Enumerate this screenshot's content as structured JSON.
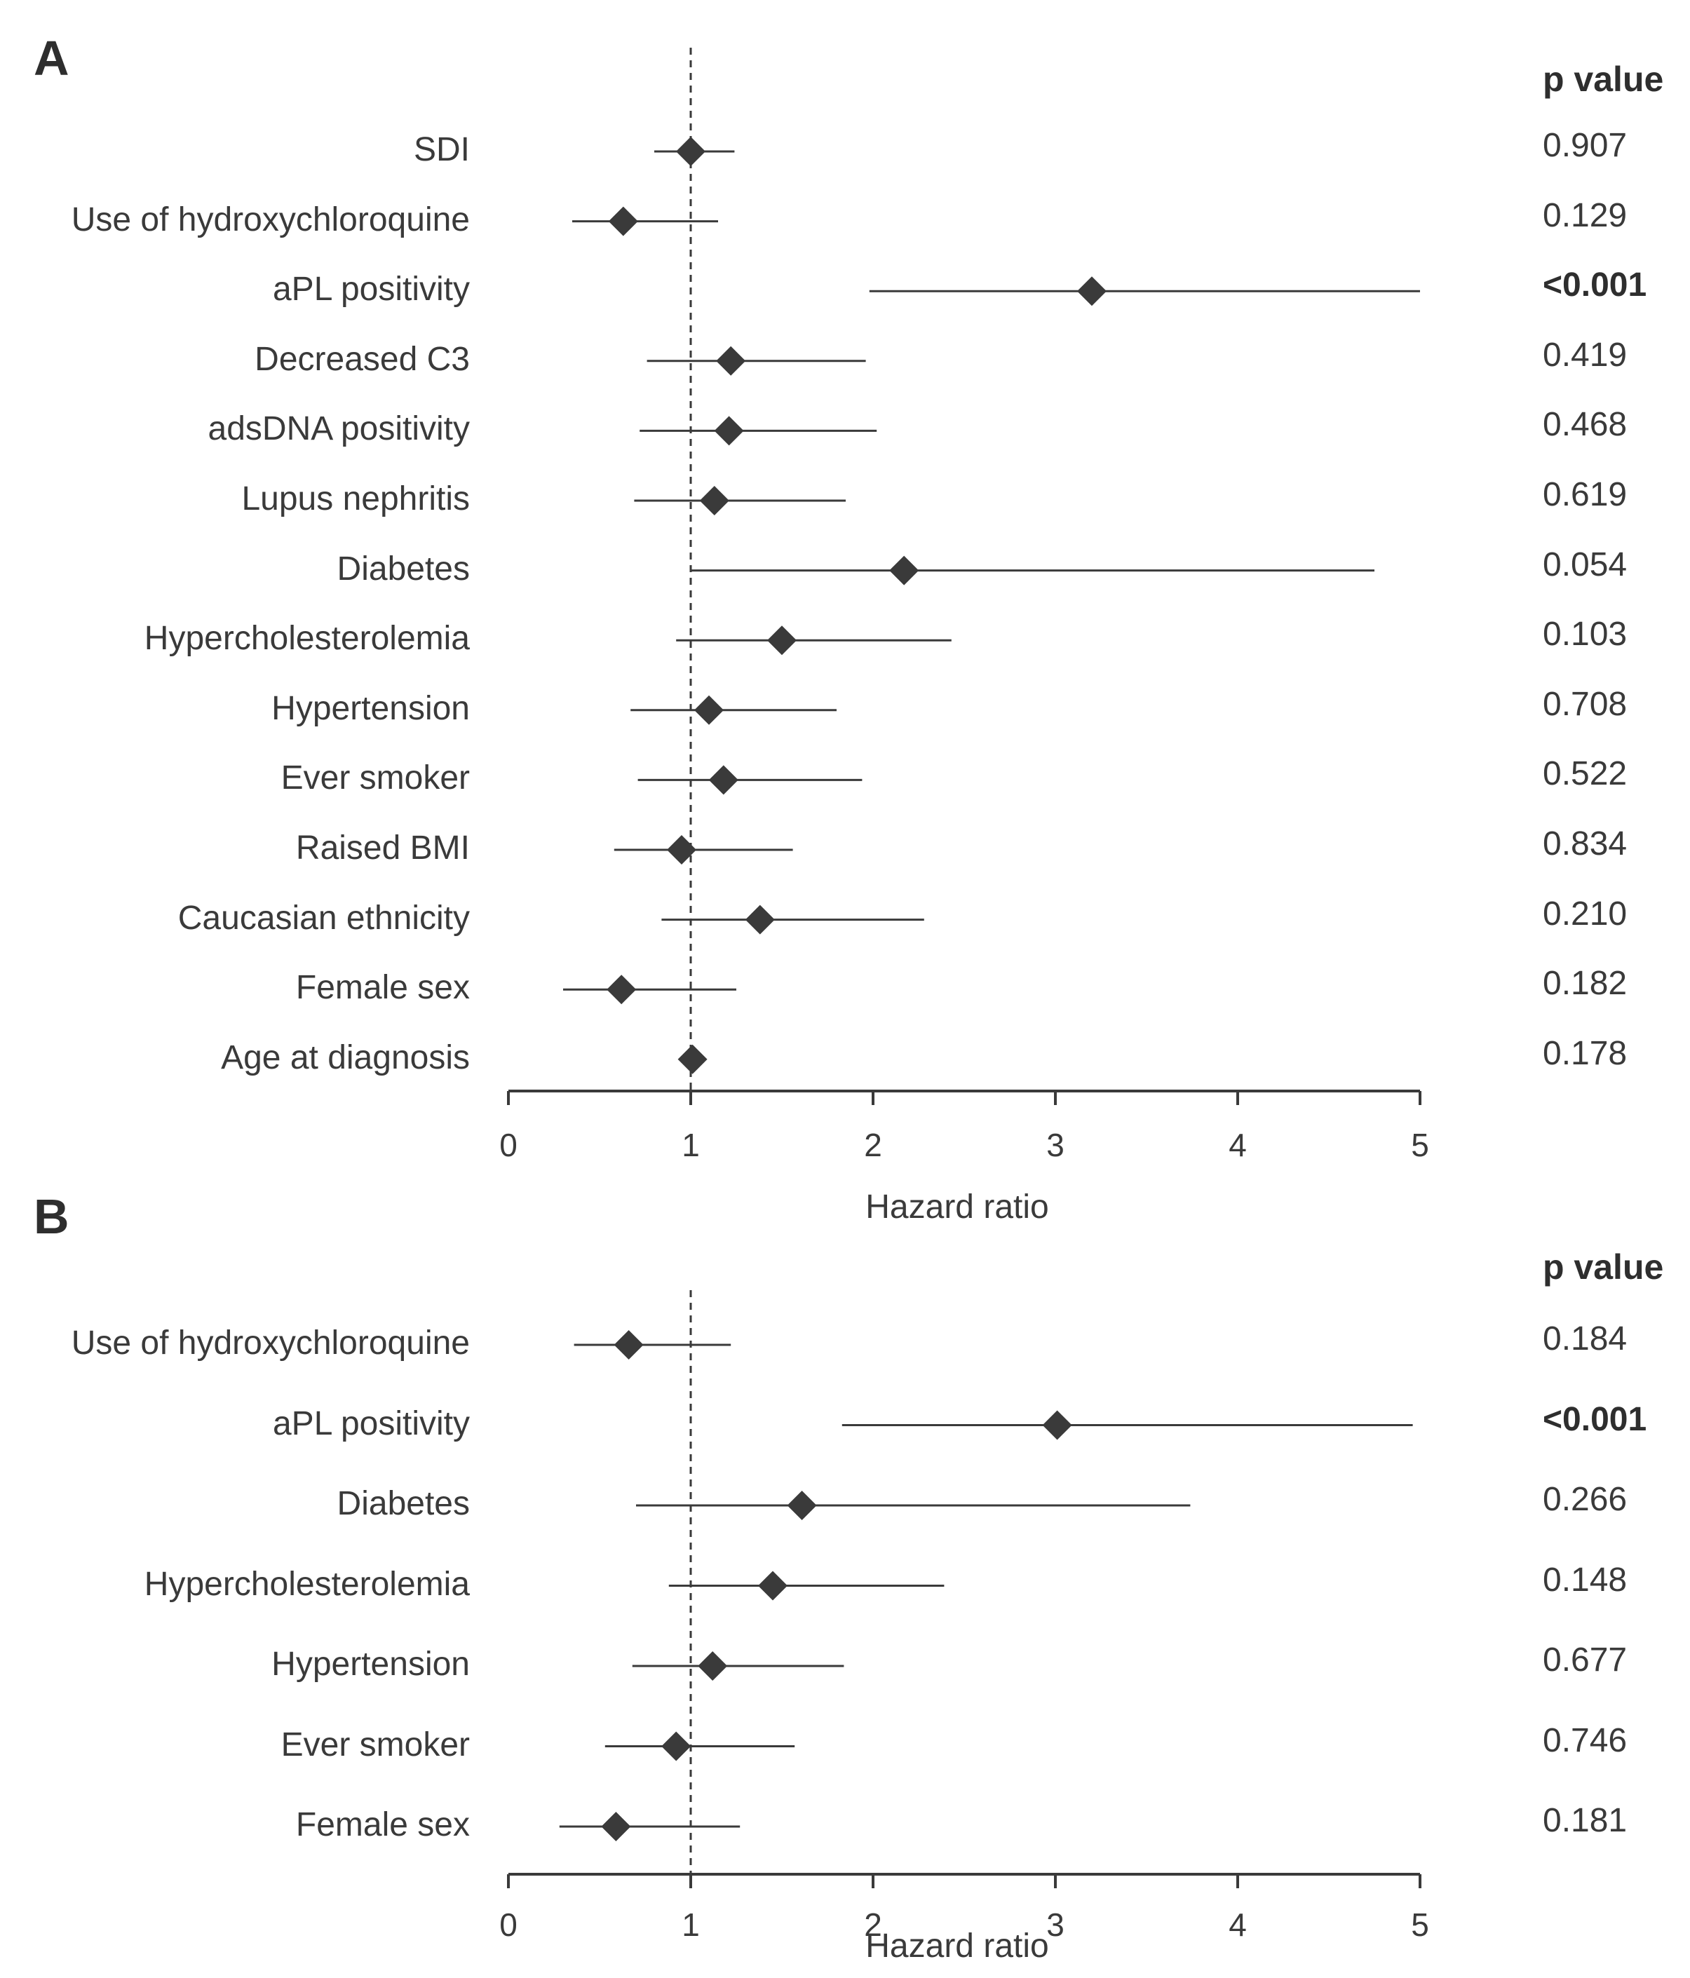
{
  "chart_data": [
    {
      "type": "forest",
      "panel_label": "A",
      "pvalue_header": "p value",
      "xlabel": "Hazard ratio",
      "xlim": [
        0,
        5
      ],
      "xticks": [
        "0",
        "1",
        "2",
        "3",
        "4",
        "5"
      ],
      "reference_line": 1,
      "rows": [
        {
          "label": "SDI",
          "hr": 1.0,
          "lo": 0.8,
          "hi": 1.24,
          "p": "0.907",
          "bold": false
        },
        {
          "label": "Use of hydroxychloroquine",
          "hr": 0.63,
          "lo": 0.35,
          "hi": 1.15,
          "p": "0.129",
          "bold": false
        },
        {
          "label": "aPL positivity",
          "hr": 3.2,
          "lo": 1.98,
          "hi": 5.0,
          "p": "<0.001",
          "bold": true
        },
        {
          "label": "Decreased C3",
          "hr": 1.22,
          "lo": 0.76,
          "hi": 1.96,
          "p": "0.419",
          "bold": false
        },
        {
          "label": "adsDNA positivity",
          "hr": 1.21,
          "lo": 0.72,
          "hi": 2.02,
          "p": "0.468",
          "bold": false
        },
        {
          "label": "Lupus nephritis",
          "hr": 1.13,
          "lo": 0.69,
          "hi": 1.85,
          "p": "0.619",
          "bold": false
        },
        {
          "label": "Diabetes",
          "hr": 2.17,
          "lo": 1.0,
          "hi": 4.75,
          "p": "0.054",
          "bold": false
        },
        {
          "label": "Hypercholesterolemia",
          "hr": 1.5,
          "lo": 0.92,
          "hi": 2.43,
          "p": "0.103",
          "bold": false
        },
        {
          "label": "Hypertension",
          "hr": 1.1,
          "lo": 0.67,
          "hi": 1.8,
          "p": "0.708",
          "bold": false
        },
        {
          "label": "Ever smoker",
          "hr": 1.18,
          "lo": 0.71,
          "hi": 1.94,
          "p": "0.522",
          "bold": false
        },
        {
          "label": "Raised BMI",
          "hr": 0.95,
          "lo": 0.58,
          "hi": 1.56,
          "p": "0.834",
          "bold": false
        },
        {
          "label": "Caucasian ethnicity",
          "hr": 1.38,
          "lo": 0.84,
          "hi": 2.28,
          "p": "0.210",
          "bold": false
        },
        {
          "label": "Female sex",
          "hr": 0.62,
          "lo": 0.3,
          "hi": 1.25,
          "p": "0.182",
          "bold": false
        },
        {
          "label": "Age at diagnosis",
          "hr": 1.01,
          "lo": 0.99,
          "hi": 1.03,
          "p": "0.178",
          "bold": false
        }
      ]
    },
    {
      "type": "forest",
      "panel_label": "B",
      "pvalue_header": "p value",
      "xlabel": "Hazard ratio",
      "xlim": [
        0,
        5
      ],
      "xticks": [
        "0",
        "1",
        "2",
        "3",
        "4",
        "5"
      ],
      "reference_line": 1,
      "rows": [
        {
          "label": "Use of hydroxychloroquine",
          "hr": 0.66,
          "lo": 0.36,
          "hi": 1.22,
          "p": "0.184",
          "bold": false
        },
        {
          "label": "aPL positivity",
          "hr": 3.01,
          "lo": 1.83,
          "hi": 4.96,
          "p": "<0.001",
          "bold": true
        },
        {
          "label": "Diabetes",
          "hr": 1.61,
          "lo": 0.7,
          "hi": 3.74,
          "p": "0.266",
          "bold": false
        },
        {
          "label": "Hypercholesterolemia",
          "hr": 1.45,
          "lo": 0.88,
          "hi": 2.39,
          "p": "0.148",
          "bold": false
        },
        {
          "label": "Hypertension",
          "hr": 1.12,
          "lo": 0.68,
          "hi": 1.84,
          "p": "0.677",
          "bold": false
        },
        {
          "label": "Ever smoker",
          "hr": 0.92,
          "lo": 0.53,
          "hi": 1.57,
          "p": "0.746",
          "bold": false
        },
        {
          "label": "Female sex",
          "hr": 0.59,
          "lo": 0.28,
          "hi": 1.27,
          "p": "0.181",
          "bold": false
        }
      ]
    }
  ],
  "colors": {
    "marker": "#3a3a3a",
    "line": "#3a3a3a",
    "text": "#3a3a3a"
  }
}
